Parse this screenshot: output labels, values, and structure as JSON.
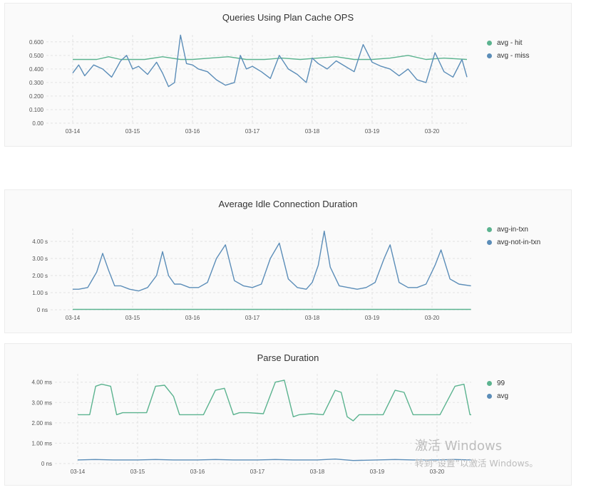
{
  "chart_data": [
    {
      "type": "line",
      "title": "Queries Using Plan Cache OPS",
      "categories": [
        "03-14",
        "03-15",
        "03-16",
        "03-17",
        "03-18",
        "03-19",
        "03-20"
      ],
      "y_ticks": [
        "0.600",
        "0.500",
        "0.400",
        "0.300",
        "0.200",
        "0.100",
        "0.00"
      ],
      "ylim": [
        0,
        0.62
      ],
      "xlim": [
        0,
        6.65
      ],
      "grid": true,
      "legend_position": "right",
      "series": [
        {
          "name": "avg - hit",
          "color": "#5bb38f",
          "x": [
            0,
            0.4,
            0.6,
            0.8,
            1.0,
            1.2,
            1.5,
            1.8,
            2.0,
            2.3,
            2.6,
            2.9,
            3.2,
            3.5,
            3.8,
            4.1,
            4.4,
            4.7,
            5.0,
            5.3,
            5.6,
            5.9,
            6.2,
            6.65
          ],
          "y": [
            0.47,
            0.47,
            0.49,
            0.47,
            0.47,
            0.47,
            0.49,
            0.47,
            0.47,
            0.48,
            0.49,
            0.47,
            0.47,
            0.48,
            0.47,
            0.48,
            0.49,
            0.47,
            0.47,
            0.48,
            0.5,
            0.47,
            0.48,
            0.47
          ]
        },
        {
          "name": "avg - miss",
          "color": "#5b8db8",
          "x": [
            0,
            0.1,
            0.2,
            0.35,
            0.5,
            0.65,
            0.8,
            0.9,
            1.0,
            1.1,
            1.25,
            1.4,
            1.5,
            1.6,
            1.7,
            1.8,
            1.9,
            2.0,
            2.1,
            2.25,
            2.4,
            2.55,
            2.7,
            2.8,
            2.9,
            3.0,
            3.15,
            3.3,
            3.45,
            3.6,
            3.75,
            3.9,
            4.0,
            4.1,
            4.25,
            4.4,
            4.55,
            4.7,
            4.85,
            5.0,
            5.15,
            5.3,
            5.45,
            5.6,
            5.75,
            5.9,
            6.05,
            6.2,
            6.35,
            6.5,
            6.65
          ],
          "y": [
            0.37,
            0.43,
            0.35,
            0.43,
            0.4,
            0.34,
            0.46,
            0.5,
            0.4,
            0.42,
            0.36,
            0.45,
            0.37,
            0.27,
            0.3,
            0.65,
            0.44,
            0.43,
            0.4,
            0.38,
            0.32,
            0.28,
            0.3,
            0.5,
            0.4,
            0.42,
            0.38,
            0.33,
            0.5,
            0.4,
            0.36,
            0.3,
            0.48,
            0.44,
            0.4,
            0.46,
            0.42,
            0.38,
            0.58,
            0.45,
            0.42,
            0.4,
            0.35,
            0.4,
            0.32,
            0.3,
            0.52,
            0.38,
            0.34,
            0.47,
            0.34
          ]
        }
      ]
    },
    {
      "type": "line",
      "title": "Average Idle Connection Duration",
      "categories": [
        "03-14",
        "03-15",
        "03-16",
        "03-17",
        "03-18",
        "03-19",
        "03-20"
      ],
      "y_ticks": [
        "4.00 s",
        "3.00 s",
        "2.00 s",
        "1.00 s",
        "0 ns"
      ],
      "ylim": [
        0,
        4.5
      ],
      "xlim": [
        0,
        6.65
      ],
      "grid": true,
      "legend_position": "right",
      "series": [
        {
          "name": "avg-in-txn",
          "color": "#5bb38f",
          "x": [
            0,
            6.65
          ],
          "y": [
            0.02,
            0.02
          ]
        },
        {
          "name": "avg-not-in-txn",
          "color": "#5b8db8",
          "x": [
            0,
            0.1,
            0.25,
            0.4,
            0.5,
            0.6,
            0.7,
            0.8,
            0.95,
            1.1,
            1.25,
            1.4,
            1.5,
            1.6,
            1.7,
            1.8,
            1.95,
            2.1,
            2.25,
            2.4,
            2.55,
            2.7,
            2.85,
            3.0,
            3.15,
            3.3,
            3.45,
            3.6,
            3.75,
            3.9,
            4.0,
            4.1,
            4.2,
            4.3,
            4.45,
            4.6,
            4.75,
            4.9,
            5.05,
            5.2,
            5.3,
            5.45,
            5.6,
            5.75,
            5.9,
            6.05,
            6.15,
            6.3,
            6.45,
            6.65
          ],
          "y": [
            1.2,
            1.2,
            1.3,
            2.2,
            3.3,
            2.3,
            1.4,
            1.4,
            1.2,
            1.1,
            1.3,
            2.0,
            3.4,
            2.0,
            1.5,
            1.5,
            1.3,
            1.3,
            1.6,
            3.0,
            3.8,
            1.7,
            1.4,
            1.3,
            1.5,
            3.0,
            3.9,
            1.8,
            1.3,
            1.2,
            1.6,
            2.6,
            4.6,
            2.5,
            1.4,
            1.3,
            1.2,
            1.3,
            1.6,
            3.0,
            3.8,
            1.6,
            1.3,
            1.3,
            1.5,
            2.6,
            3.5,
            1.8,
            1.5,
            1.4
          ]
        }
      ]
    },
    {
      "type": "line",
      "title": "Parse Duration",
      "categories": [
        "03-14",
        "03-15",
        "03-16",
        "03-17",
        "03-18",
        "03-19",
        "03-20"
      ],
      "y_ticks": [
        "4.00 ms",
        "3.00 ms",
        "2.00 ms",
        "1.00 ms",
        "0 ns"
      ],
      "ylim": [
        0,
        4.2
      ],
      "xlim": [
        0,
        6.65
      ],
      "grid": true,
      "legend_position": "right",
      "series": [
        {
          "name": "99",
          "color": "#5bb38f",
          "x": [
            0,
            0.2,
            0.3,
            0.4,
            0.55,
            0.65,
            0.75,
            1.0,
            1.15,
            1.3,
            1.45,
            1.6,
            1.7,
            1.9,
            2.1,
            2.3,
            2.45,
            2.6,
            2.7,
            2.85,
            3.1,
            3.3,
            3.45,
            3.6,
            3.7,
            3.9,
            4.1,
            4.3,
            4.4,
            4.5,
            4.6,
            4.7,
            4.85,
            5.1,
            5.3,
            5.45,
            5.6,
            5.75,
            5.85,
            6.05,
            6.3,
            6.45,
            6.55,
            6.65
          ],
          "y": [
            2.4,
            2.4,
            3.8,
            3.9,
            3.8,
            2.4,
            2.5,
            2.5,
            2.5,
            3.8,
            3.85,
            3.3,
            2.4,
            2.4,
            2.4,
            3.6,
            3.7,
            2.4,
            2.5,
            2.5,
            2.45,
            4.0,
            4.1,
            2.3,
            2.4,
            2.45,
            2.4,
            3.6,
            3.5,
            2.3,
            2.1,
            2.4,
            2.4,
            2.4,
            3.6,
            3.5,
            2.4,
            2.4,
            2.4,
            2.4,
            3.8,
            3.9,
            2.4,
            2.4
          ]
        },
        {
          "name": "avg",
          "color": "#5b8db8",
          "x": [
            0,
            0.3,
            0.6,
            1.0,
            1.3,
            1.6,
            2.0,
            2.3,
            2.6,
            3.0,
            3.3,
            3.6,
            4.0,
            4.3,
            4.6,
            5.0,
            5.3,
            5.6,
            6.0,
            6.3,
            6.65
          ],
          "y": [
            0.18,
            0.2,
            0.18,
            0.18,
            0.2,
            0.18,
            0.18,
            0.2,
            0.18,
            0.18,
            0.2,
            0.18,
            0.18,
            0.22,
            0.15,
            0.18,
            0.2,
            0.18,
            0.18,
            0.2,
            0.18
          ]
        }
      ]
    }
  ],
  "watermark": {
    "title": "激活 Windows",
    "subtitle": "转到“设置”以激活 Windows。"
  }
}
